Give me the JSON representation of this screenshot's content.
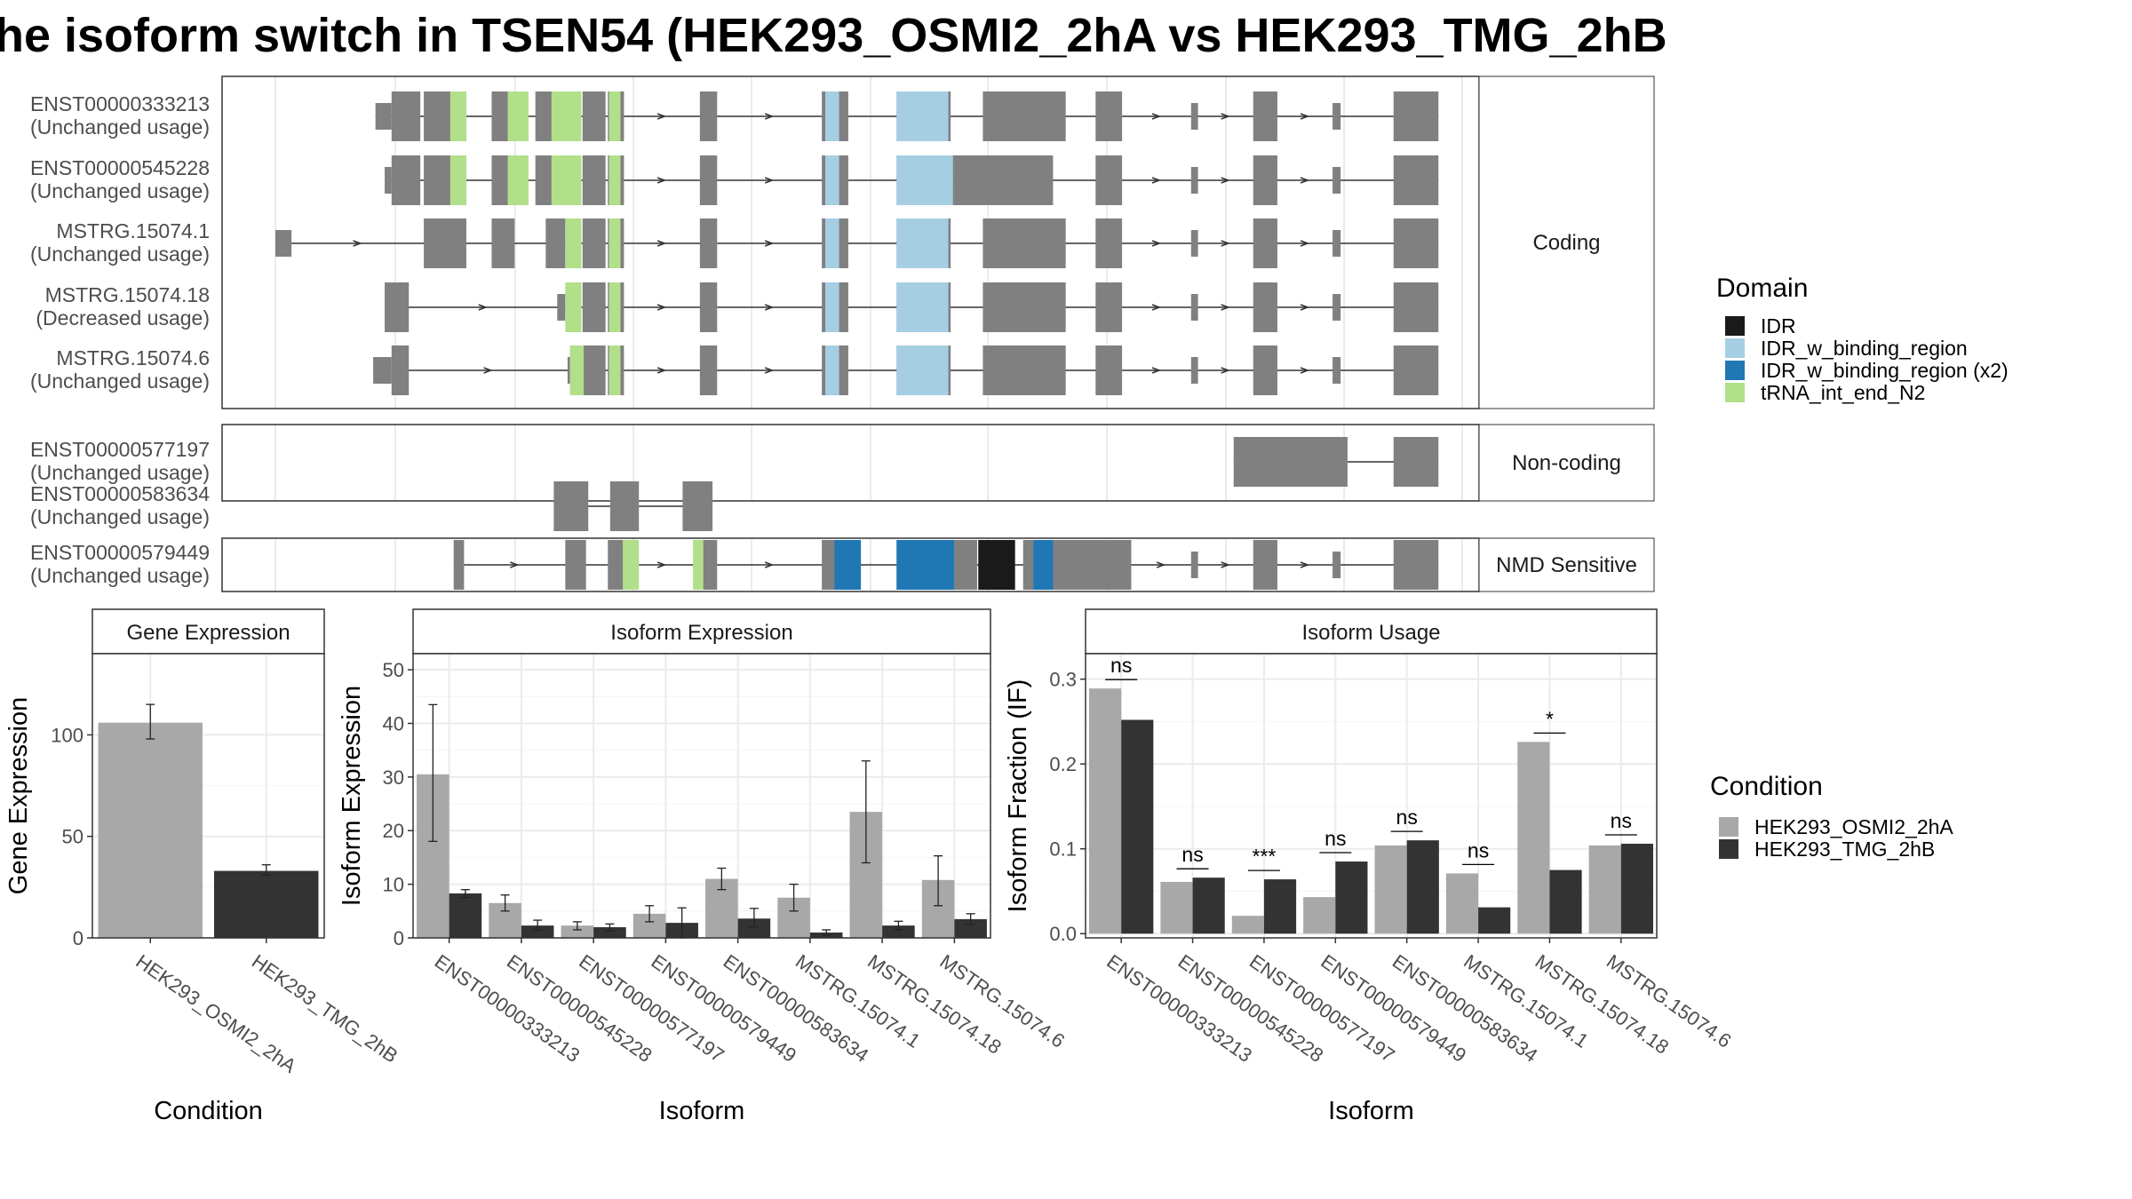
{
  "title": "he isoform switch in TSEN54 (HEK293_OSMI2_2hA vs HEK293_TMG_2hB",
  "colors": {
    "exon": "#808080",
    "IDR": "#1a1a1a",
    "IDR_w_binding_region": "#a6cee3",
    "IDR_w_binding_region (x2)": "#1f78b4",
    "tRNA_int_end_N2": "#b2df8a",
    "cond1": "#a8a8a8",
    "cond2": "#333333"
  },
  "isoform_structure": {
    "x_range": [
      0,
      1000
    ],
    "groups": [
      {
        "label": "Coding",
        "rows": [
          {
            "id": "ENST00000333213",
            "usage": "(Unchanged usage)",
            "exons": [
              [
                87,
                101
              ],
              [
                102,
                115
              ],
              [
                134,
                152
              ],
              [
                184,
                202
              ],
              [
                224,
                248
              ],
              [
                267,
                275
              ],
              [
                277,
                297
              ],
              [
                366,
                380
              ],
              [
                478,
                492
              ],
              [
                540,
                587
              ],
              [
                622,
                664
              ],
              [
                674,
                700
              ],
              [
                725,
                739
              ]
            ],
            "cds": [
              [
                87,
                150
              ],
              [
                100,
                700
              ]
            ],
            "domains": [
              [
                152,
                166,
                "tRNA_int_end_N2"
              ],
              [
                202,
                220,
                "tRNA_int_end_N2"
              ],
              [
                240,
                266,
                "tRNA_int_end_N2"
              ],
              [
                290,
                300,
                "tRNA_int_end_N2"
              ],
              [
                478,
                490,
                "IDR_w_binding_region"
              ],
              [
                540,
                585,
                "IDR_w_binding_region"
              ]
            ],
            "segments": [
              [
                87,
                101
              ],
              [
                101,
                126
              ],
              [
                129,
                166
              ],
              [
                188,
                208
              ],
              [
                226,
                252
              ],
              [
                267,
                287
              ],
              [
                289,
                303
              ],
              [
                369,
                384
              ],
              [
                475,
                498
              ],
              [
                540,
                587
              ],
              [
                615,
                687
              ],
              [
                713,
                736
              ],
              [
                796,
                802
              ],
              [
                850,
                871
              ],
              [
                919,
                926
              ],
              [
                972,
                1011
              ]
            ]
          },
          {
            "id": "ENST00000545228",
            "usage": "(Unchanged usage)",
            "segments": [
              [
                95,
                101
              ],
              [
                101,
                126
              ],
              [
                129,
                166
              ],
              [
                188,
                208
              ],
              [
                226,
                252
              ],
              [
                267,
                287
              ],
              [
                289,
                303
              ],
              [
                369,
                384
              ],
              [
                475,
                498
              ],
              [
                540,
                590
              ],
              [
                590,
                676
              ],
              [
                713,
                736
              ],
              [
                796,
                802
              ],
              [
                850,
                871
              ],
              [
                919,
                926
              ],
              [
                972,
                1011
              ]
            ],
            "domains": [
              [
                152,
                166,
                "tRNA_int_end_N2"
              ],
              [
                202,
                220,
                "tRNA_int_end_N2"
              ],
              [
                240,
                266,
                "tRNA_int_end_N2"
              ],
              [
                290,
                300,
                "tRNA_int_end_N2"
              ],
              [
                478,
                490,
                "IDR_w_binding_region"
              ],
              [
                540,
                589,
                "IDR_w_binding_region"
              ]
            ]
          },
          {
            "id": "MSTRG.15074.1",
            "usage": "(Unchanged usage)",
            "segments": [
              [
                0,
                14
              ],
              [
                129,
                166
              ],
              [
                188,
                208
              ],
              [
                235,
                252
              ],
              [
                267,
                287
              ],
              [
                289,
                303
              ],
              [
                369,
                384
              ],
              [
                475,
                498
              ],
              [
                540,
                587
              ],
              [
                615,
                687
              ],
              [
                713,
                736
              ],
              [
                796,
                802
              ],
              [
                850,
                871
              ],
              [
                919,
                926
              ],
              [
                972,
                1011
              ]
            ],
            "domains": [
              [
                252,
                266,
                "tRNA_int_end_N2"
              ],
              [
                290,
                300,
                "tRNA_int_end_N2"
              ],
              [
                478,
                490,
                "IDR_w_binding_region"
              ],
              [
                540,
                585,
                "IDR_w_binding_region"
              ]
            ]
          },
          {
            "id": "MSTRG.15074.18",
            "usage": "(Decreased usage)",
            "segments": [
              [
                95,
                116
              ],
              [
                245,
                252
              ],
              [
                267,
                287
              ],
              [
                289,
                303
              ],
              [
                369,
                384
              ],
              [
                475,
                498
              ],
              [
                540,
                587
              ],
              [
                615,
                687
              ],
              [
                713,
                736
              ],
              [
                796,
                802
              ],
              [
                850,
                871
              ],
              [
                919,
                926
              ],
              [
                972,
                1011
              ]
            ],
            "domains": [
              [
                252,
                266,
                "tRNA_int_end_N2"
              ],
              [
                290,
                300,
                "tRNA_int_end_N2"
              ],
              [
                478,
                490,
                "IDR_w_binding_region"
              ],
              [
                540,
                585,
                "IDR_w_binding_region"
              ]
            ]
          },
          {
            "id": "MSTRG.15074.6",
            "usage": "(Unchanged usage)",
            "segments": [
              [
                85,
                101
              ],
              [
                101,
                116
              ],
              [
                254,
                258
              ],
              [
                267,
                287
              ],
              [
                289,
                303
              ],
              [
                369,
                384
              ],
              [
                475,
                498
              ],
              [
                540,
                587
              ],
              [
                615,
                687
              ],
              [
                713,
                736
              ],
              [
                796,
                802
              ],
              [
                850,
                871
              ],
              [
                919,
                926
              ],
              [
                972,
                1011
              ]
            ],
            "domains": [
              [
                256,
                268,
                "tRNA_int_end_N2"
              ],
              [
                290,
                300,
                "tRNA_int_end_N2"
              ],
              [
                478,
                490,
                "IDR_w_binding_region"
              ],
              [
                540,
                585,
                "IDR_w_binding_region"
              ]
            ]
          }
        ]
      },
      {
        "label": "Non-coding",
        "rows": [
          {
            "id": "ENST00000577197",
            "usage": "(Unchanged usage)",
            "segments": [
              [
                833,
                932
              ],
              [
                972,
                1011
              ]
            ],
            "domains": []
          },
          {
            "id": "ENST00000583634",
            "usage": "(Unchanged usage)",
            "segments": [
              [
                242,
                272
              ],
              [
                291,
                316
              ],
              [
                354,
                380
              ]
            ],
            "domains": []
          }
        ]
      },
      {
        "label": "NMD Sensitive",
        "rows": [
          {
            "id": "ENST00000579449",
            "usage": "(Unchanged usage)",
            "segments": [
              [
                155,
                164
              ],
              [
                252,
                270
              ],
              [
                289,
                303
              ],
              [
                369,
                384
              ],
              [
                475,
                498
              ],
              [
                540,
                587
              ],
              [
                590,
                610
              ],
              [
                650,
                744
              ],
              [
                796,
                802
              ],
              [
                850,
                871
              ],
              [
                919,
                926
              ],
              [
                972,
                1011
              ]
            ],
            "domains": [
              [
                302,
                316,
                "tRNA_int_end_N2"
              ],
              [
                363,
                372,
                "tRNA_int_end_N2"
              ],
              [
                486,
                509,
                "IDR_w_binding_region (x2)"
              ],
              [
                540,
                590,
                "IDR_w_binding_region (x2)"
              ],
              [
                611,
                643,
                "IDR"
              ],
              [
                659,
                676,
                "IDR_w_binding_region (x2)"
              ]
            ]
          }
        ]
      }
    ]
  },
  "legend_domain": {
    "title": "Domain",
    "items": [
      "IDR",
      "IDR_w_binding_region",
      "IDR_w_binding_region (x2)",
      "tRNA_int_end_N2"
    ]
  },
  "legend_condition": {
    "title": "Condition",
    "items": [
      "HEK293_OSMI2_2hA",
      "HEK293_TMG_2hB"
    ]
  },
  "chart_data": [
    {
      "type": "bar",
      "panel_title": "Gene Expression",
      "xlabel": "Condition",
      "ylabel": "Gene Expression",
      "categories": [
        "HEK293_OSMI2_2hA",
        "HEK293_TMG_2hB"
      ],
      "values": [
        106,
        33
      ],
      "errors": [
        [
          98,
          115
        ],
        [
          31,
          36
        ]
      ],
      "ylim": [
        0,
        140
      ],
      "yticks": [
        0,
        50,
        100
      ]
    },
    {
      "type": "bar",
      "panel_title": "Isoform Expression",
      "xlabel": "Isoform",
      "ylabel": "Isoform Expression",
      "categories": [
        "ENST00000333213",
        "ENST00000545228",
        "ENST00000577197",
        "ENST00000579449",
        "ENST00000583634",
        "MSTRG.15074.1",
        "MSTRG.15074.18",
        "MSTRG.15074.6"
      ],
      "series": [
        {
          "name": "HEK293_OSMI2_2hA",
          "values": [
            30.5,
            6.5,
            2.3,
            4.5,
            11,
            7.5,
            23.5,
            10.8
          ],
          "errors": [
            [
              18,
              43.5
            ],
            [
              5,
              8
            ],
            [
              1.5,
              3
            ],
            [
              3,
              6
            ],
            [
              9,
              13
            ],
            [
              5,
              10
            ],
            [
              14,
              33
            ],
            [
              6,
              15.3
            ]
          ]
        },
        {
          "name": "HEK293_TMG_2hB",
          "values": [
            8.3,
            2.3,
            2.0,
            2.8,
            3.6,
            1.0,
            2.3,
            3.5
          ],
          "errors": [
            [
              7.5,
              9
            ],
            [
              1.5,
              3.3
            ],
            [
              1.3,
              2.6
            ],
            [
              0,
              5.6
            ],
            [
              2,
              5.5
            ],
            [
              0.5,
              1.5
            ],
            [
              1.5,
              3.1
            ],
            [
              2.5,
              4.5
            ]
          ]
        }
      ],
      "ylim": [
        0,
        53
      ],
      "yticks": [
        0,
        10,
        20,
        30,
        40,
        50
      ]
    },
    {
      "type": "bar",
      "panel_title": "Isoform Usage",
      "xlabel": "Isoform",
      "ylabel": "Isoform Fraction (IF)",
      "categories": [
        "ENST00000333213",
        "ENST00000545228",
        "ENST00000577197",
        "ENST00000579449",
        "ENST00000583634",
        "MSTRG.15074.1",
        "MSTRG.15074.18",
        "MSTRG.15074.6"
      ],
      "series": [
        {
          "name": "HEK293_OSMI2_2hA",
          "values": [
            0.289,
            0.061,
            0.021,
            0.043,
            0.104,
            0.071,
            0.226,
            0.104
          ]
        },
        {
          "name": "HEK293_TMG_2hB",
          "values": [
            0.252,
            0.066,
            0.064,
            0.085,
            0.11,
            0.031,
            0.075,
            0.106
          ]
        }
      ],
      "significance": [
        "ns",
        "ns",
        "***",
        "ns",
        "ns",
        "ns",
        "*",
        "ns"
      ],
      "ylim": [
        -0.005,
        0.33
      ],
      "yticks": [
        0.0,
        0.1,
        0.2,
        0.3
      ],
      "ytick_labels": [
        "0.0",
        "0.1",
        "0.2",
        "0.3"
      ]
    }
  ]
}
